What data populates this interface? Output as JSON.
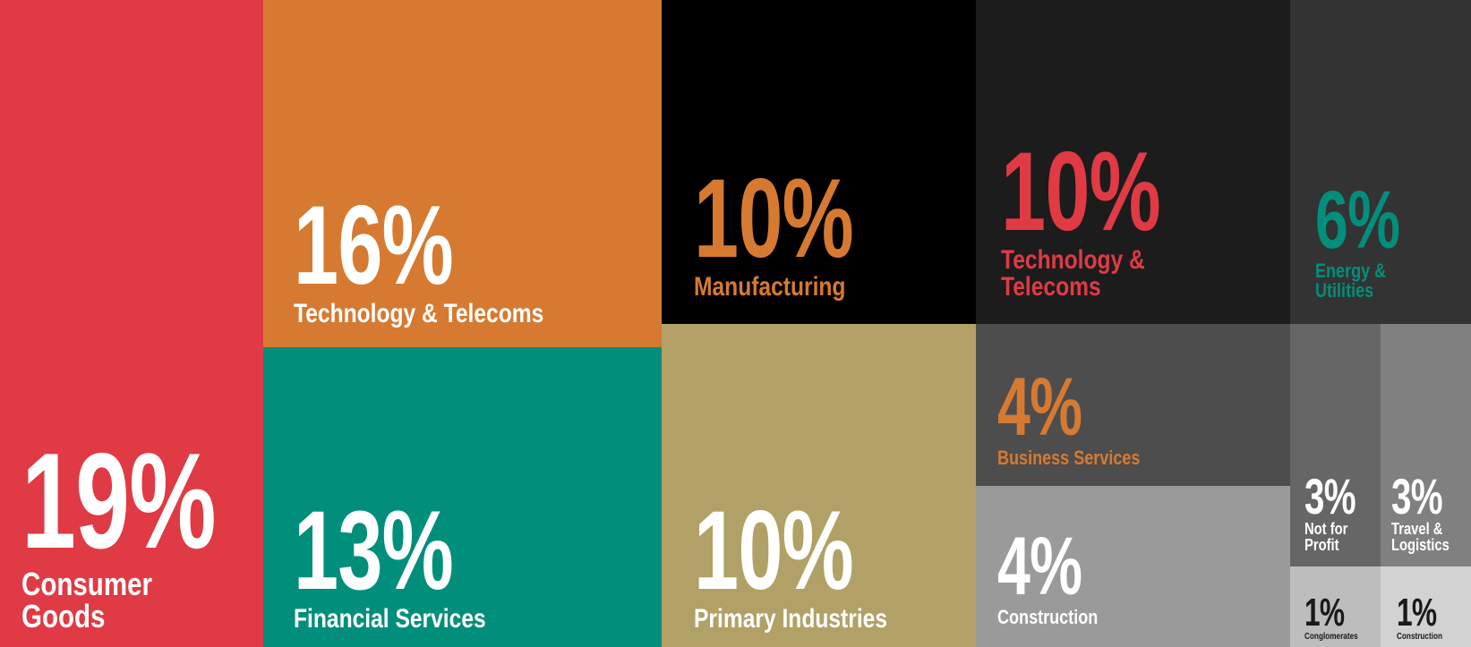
{
  "chart_data": {
    "type": "treemap",
    "items": [
      {
        "pct": "19%",
        "value": 19,
        "label": "Consumer Goods",
        "bg": "#e03a45",
        "fg": "#ffffff"
      },
      {
        "pct": "16%",
        "value": 16,
        "label": "Technology & Telecoms",
        "bg": "#d67a32",
        "fg": "#ffffff"
      },
      {
        "pct": "13%",
        "value": 13,
        "label": "Financial Services",
        "bg": "#018f7c",
        "fg": "#ffffff"
      },
      {
        "pct": "10%",
        "value": 10,
        "label": "Manufacturing",
        "bg": "#000000",
        "fg": "#d67a32"
      },
      {
        "pct": "10%",
        "value": 10,
        "label": "Primary Industries",
        "bg": "#b2a166",
        "fg": "#ffffff"
      },
      {
        "pct": "10%",
        "value": 10,
        "label": "Technology & Telecoms",
        "bg": "#1c1c1c",
        "fg": "#e03a45"
      },
      {
        "pct": "6%",
        "value": 6,
        "label": "Energy & Utilities",
        "bg": "#333333",
        "fg": "#018f7c"
      },
      {
        "pct": "4%",
        "value": 4,
        "label": "Business Services",
        "bg": "#4d4d4d",
        "fg": "#d67a32"
      },
      {
        "pct": "4%",
        "value": 4,
        "label": "Construction",
        "bg": "#9a9a9a",
        "fg": "#ffffff"
      },
      {
        "pct": "3%",
        "value": 3,
        "label": "Not for\nProfit",
        "bg": "#666666",
        "fg": "#ffffff"
      },
      {
        "pct": "3%",
        "value": 3,
        "label": "Travel &\nLogistics",
        "bg": "#808080",
        "fg": "#ffffff"
      },
      {
        "pct": "1%",
        "value": 1,
        "label": "Conglomerates",
        "bg": "#bdbdbd",
        "fg": "#1a1a1a"
      },
      {
        "pct": "1%",
        "value": 1,
        "label": "Construction",
        "bg": "#d2d2d2",
        "fg": "#1a1a1a"
      }
    ]
  }
}
